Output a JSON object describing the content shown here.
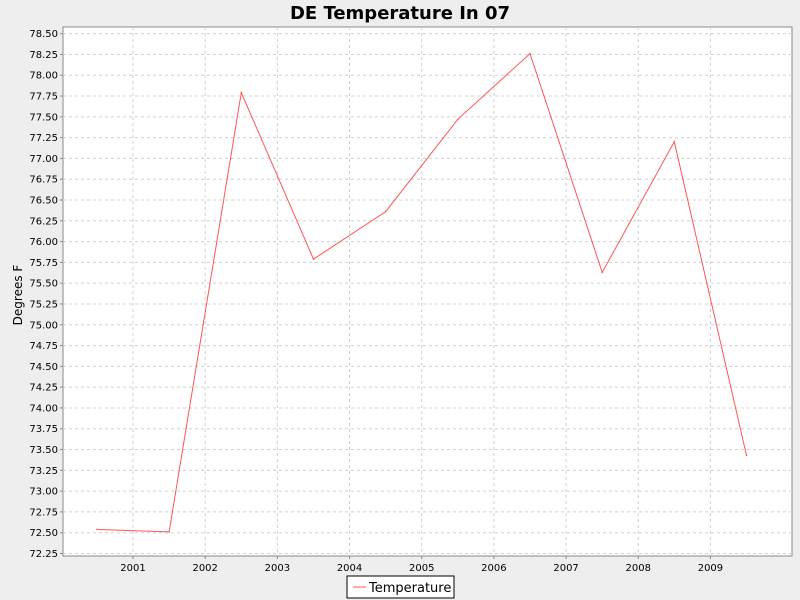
{
  "chart_data": {
    "type": "line",
    "title": "DE Temperature In 07",
    "xlabel": "",
    "ylabel": "Degrees F",
    "x_ticks": [
      "2001",
      "2002",
      "2003",
      "2004",
      "2005",
      "2006",
      "2007",
      "2008",
      "2009"
    ],
    "y_ticks": [
      "72.25",
      "72.50",
      "72.75",
      "73.00",
      "73.25",
      "73.50",
      "73.75",
      "74.00",
      "74.25",
      "74.50",
      "74.75",
      "75.00",
      "75.25",
      "75.50",
      "75.75",
      "76.00",
      "76.25",
      "76.50",
      "76.75",
      "77.00",
      "77.25",
      "77.50",
      "77.75",
      "78.00",
      "78.25",
      "78.50"
    ],
    "xlim": [
      2000.03,
      2010.13
    ],
    "ylim": [
      72.22,
      78.58
    ],
    "grid": true,
    "legend_position": "bottom-center",
    "series": [
      {
        "name": "Temperature",
        "color": "#ff5555",
        "x": [
          2000.5,
          2001.5,
          2002.5,
          2003.5,
          2004.5,
          2005.5,
          2006.5,
          2007.5,
          2008.5,
          2009.5
        ],
        "y": [
          72.54,
          72.51,
          77.79,
          75.79,
          76.36,
          77.47,
          78.26,
          75.63,
          77.2,
          73.43
        ]
      }
    ]
  }
}
